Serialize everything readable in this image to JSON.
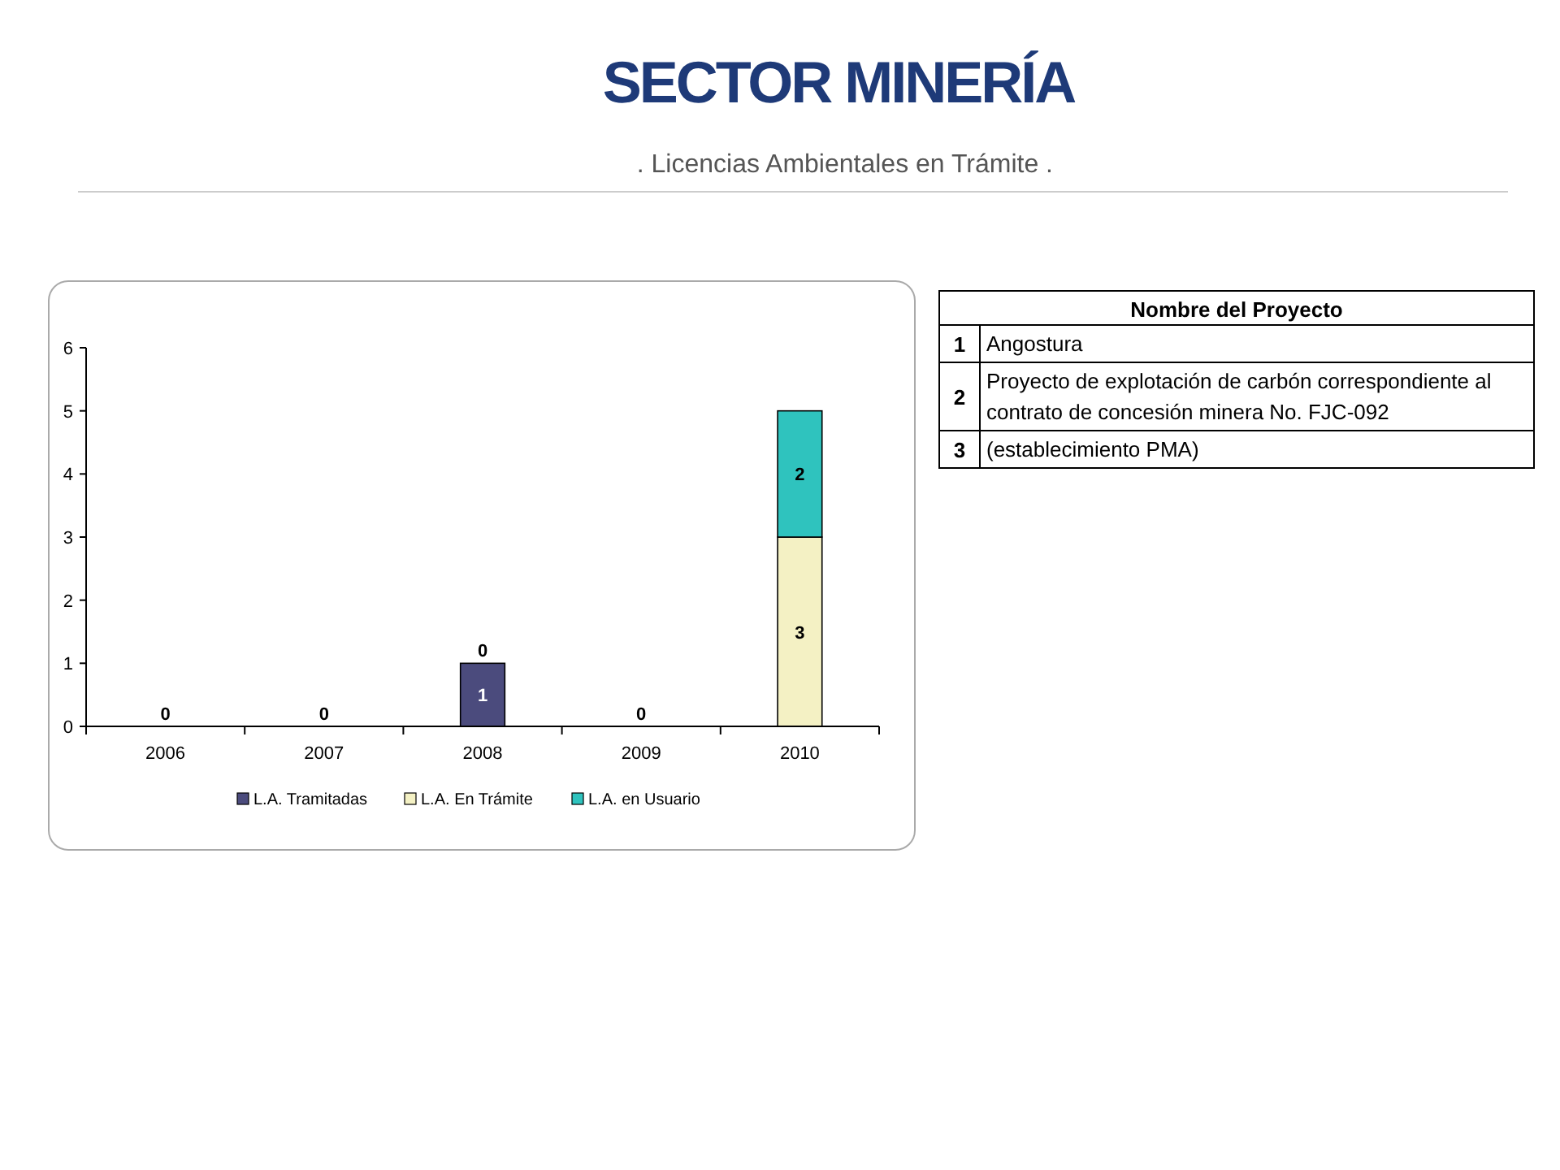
{
  "chart_data": [
    {
      "type": "bar",
      "title": "SECTOR MINERÍA",
      "subtitle": ". Licencias Ambientales en Trámite .",
      "categories": [
        "2006",
        "2007",
        "2008",
        "2009",
        "2010"
      ],
      "stacked": true,
      "ylim": [
        0,
        6
      ],
      "yticks": [
        0,
        1,
        2,
        3,
        4,
        5,
        6
      ],
      "legend": "bottom",
      "series": [
        {
          "name": "L.A. Tramitadas",
          "color": "#4b4b7d",
          "values": [
            0,
            0,
            1,
            0,
            0
          ],
          "value_labels": [
            "0",
            "0",
            "1",
            "0",
            null
          ]
        },
        {
          "name": "L.A. En Trámite",
          "color": "#f4f1c4",
          "values": [
            0,
            0,
            0,
            0,
            3
          ],
          "value_labels": [
            null,
            null,
            "0",
            null,
            "3"
          ]
        },
        {
          "name": "L.A. en Usuario",
          "color": "#2fc3be",
          "values": [
            0,
            0,
            0,
            0,
            2
          ],
          "value_labels": [
            null,
            null,
            null,
            null,
            "2"
          ]
        }
      ]
    },
    {
      "type": "other",
      "title": "Nombre del Proyecto",
      "annotations": [
        "1",
        "Angostura",
        "2",
        "Proyecto de explotación de carbón correspondiente al contrato de concesión minera No. FJC-092",
        "3",
        "(establecimiento PMA)"
      ]
    }
  ]
}
